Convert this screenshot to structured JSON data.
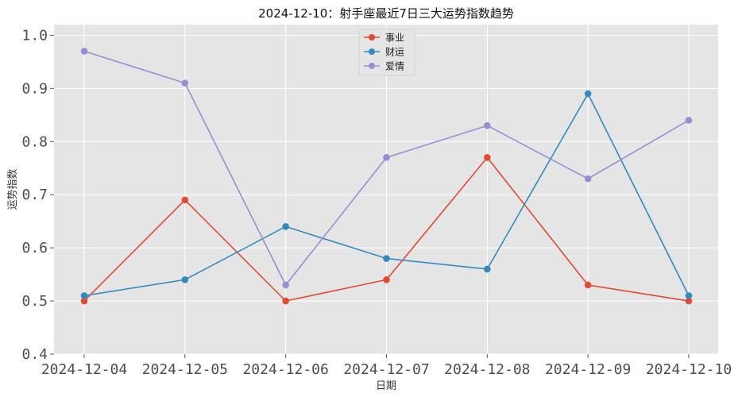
{
  "chart_data": {
    "type": "line",
    "title": "2024-12-10：射手座最近7日三大运势指数趋势",
    "xlabel": "日期",
    "ylabel": "运势指数",
    "categories": [
      "2024-12-04",
      "2024-12-05",
      "2024-12-06",
      "2024-12-07",
      "2024-12-08",
      "2024-12-09",
      "2024-12-10"
    ],
    "ylim": [
      0.4,
      1.02
    ],
    "yticks": [
      "0.4",
      "0.5",
      "0.6",
      "0.7",
      "0.8",
      "0.9",
      "1.0"
    ],
    "grid": true,
    "legend_position": "top-center",
    "series": [
      {
        "name": "事业",
        "color": "#E24A33",
        "values": [
          0.5,
          0.69,
          0.5,
          0.54,
          0.77,
          0.53,
          0.5
        ]
      },
      {
        "name": "财运",
        "color": "#348ABD",
        "values": [
          0.51,
          0.54,
          0.64,
          0.58,
          0.56,
          0.89,
          0.51
        ]
      },
      {
        "name": "爱情",
        "color": "#988ED5",
        "values": [
          0.97,
          0.91,
          0.53,
          0.77,
          0.83,
          0.73,
          0.84
        ]
      }
    ]
  }
}
